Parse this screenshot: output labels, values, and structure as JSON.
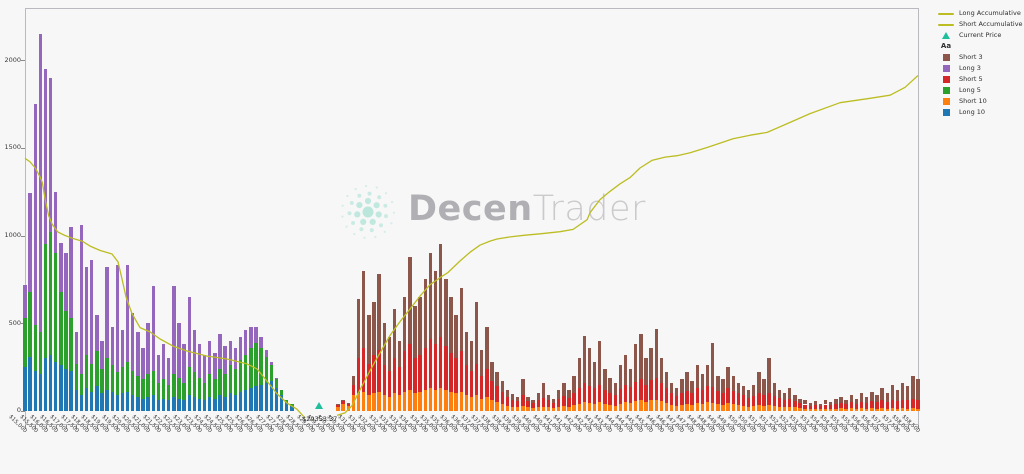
{
  "watermark": {
    "brand_bold": "Decen",
    "brand_light": "Trader"
  },
  "legend": {
    "items": [
      {
        "label": "Long Accumulative",
        "marker": "line",
        "color": "#bcbd22"
      },
      {
        "label": "Short Accumulative",
        "marker": "line",
        "color": "#bcbd22"
      },
      {
        "label": "Current Price",
        "marker": "triangle",
        "color": "#1fbf9c"
      },
      {
        "label": "",
        "marker": "text",
        "text": "Aa",
        "color": "#2e2e2e"
      },
      {
        "label": "Short 3",
        "marker": "square",
        "color": "#8c564b"
      },
      {
        "label": "Long 3",
        "marker": "square",
        "color": "#9467bd"
      },
      {
        "label": "Short 5",
        "marker": "square",
        "color": "#d62728"
      },
      {
        "label": "Long 5",
        "marker": "square",
        "color": "#2ca02c"
      },
      {
        "label": "Short 10",
        "marker": "square",
        "color": "#ff7f0e"
      },
      {
        "label": "Long 10",
        "marker": "square",
        "color": "#1f77b4"
      }
    ]
  },
  "current_price": {
    "label": "$29353.37",
    "value": 29353.37
  },
  "chart_data": {
    "type": "bar",
    "title": "",
    "xlabel": "",
    "ylabel": "",
    "x_axis": {
      "min": 15000,
      "max": 58500,
      "tick_step": 500,
      "tick_prefix": "$"
    },
    "y_axis": {
      "min": -80,
      "max": 2297,
      "ticks": [
        0,
        500,
        1000,
        1500,
        2000
      ]
    },
    "colors": {
      "long10": "#1f77b4",
      "long5": "#2ca02c",
      "long3": "#9467bd",
      "short10": "#ff7f0e",
      "short5": "#d62728",
      "short3": "#8c564b",
      "accumulative_line": "#bcbd22",
      "current_price": "#1fbf9c"
    },
    "long_bars": {
      "start_price": 15000,
      "step": 250,
      "stack_order": [
        "long10",
        "long5",
        "long3"
      ],
      "stacks": [
        [
          250,
          280,
          190
        ],
        [
          310,
          370,
          560
        ],
        [
          230,
          260,
          1260
        ],
        [
          210,
          240,
          1700
        ],
        [
          300,
          650,
          1000
        ],
        [
          320,
          700,
          880
        ],
        [
          280,
          620,
          350
        ],
        [
          260,
          420,
          280
        ],
        [
          240,
          330,
          330
        ],
        [
          230,
          300,
          520
        ],
        [
          120,
          150,
          180
        ],
        [
          90,
          120,
          850
        ],
        [
          130,
          190,
          500
        ],
        [
          110,
          160,
          590
        ],
        [
          140,
          200,
          210
        ],
        [
          100,
          140,
          160
        ],
        [
          120,
          180,
          520
        ],
        [
          110,
          150,
          220
        ],
        [
          90,
          130,
          610
        ],
        [
          100,
          150,
          210
        ],
        [
          110,
          170,
          550
        ],
        [
          90,
          140,
          330
        ],
        [
          80,
          120,
          250
        ],
        [
          70,
          110,
          180
        ],
        [
          80,
          130,
          290
        ],
        [
          90,
          140,
          480
        ],
        [
          60,
          100,
          160
        ],
        [
          70,
          110,
          200
        ],
        [
          60,
          90,
          150
        ],
        [
          80,
          130,
          500
        ],
        [
          70,
          120,
          310
        ],
        [
          60,
          100,
          220
        ],
        [
          90,
          160,
          400
        ],
        [
          80,
          140,
          240
        ],
        [
          70,
          120,
          190
        ],
        [
          60,
          100,
          160
        ],
        [
          80,
          130,
          190
        ],
        [
          70,
          110,
          150
        ],
        [
          90,
          150,
          200
        ],
        [
          80,
          130,
          160
        ],
        [
          100,
          160,
          140
        ],
        [
          90,
          150,
          120
        ],
        [
          110,
          180,
          130
        ],
        [
          120,
          200,
          140
        ],
        [
          130,
          230,
          120
        ],
        [
          140,
          250,
          90
        ],
        [
          150,
          210,
          60
        ],
        [
          160,
          150,
          40
        ],
        [
          170,
          90,
          20
        ],
        [
          130,
          50,
          10
        ],
        [
          90,
          30,
          0
        ],
        [
          50,
          15,
          0
        ],
        [
          30,
          10,
          0
        ]
      ]
    },
    "short_bars": {
      "start_price": 30250,
      "step": 250,
      "stack_order": [
        "short10",
        "short5",
        "short3"
      ],
      "stacks": [
        [
          25,
          10,
          5
        ],
        [
          40,
          15,
          5
        ],
        [
          30,
          10,
          5
        ],
        [
          90,
          60,
          50
        ],
        [
          100,
          200,
          340
        ],
        [
          110,
          250,
          440
        ],
        [
          90,
          180,
          280
        ],
        [
          100,
          220,
          300
        ],
        [
          110,
          240,
          430
        ],
        [
          90,
          170,
          240
        ],
        [
          80,
          150,
          190
        ],
        [
          100,
          200,
          280
        ],
        [
          90,
          160,
          150
        ],
        [
          110,
          230,
          310
        ],
        [
          120,
          260,
          500
        ],
        [
          100,
          200,
          300
        ],
        [
          110,
          210,
          330
        ],
        [
          120,
          240,
          390
        ],
        [
          130,
          280,
          490
        ],
        [
          120,
          260,
          420
        ],
        [
          130,
          290,
          530
        ],
        [
          120,
          250,
          380
        ],
        [
          110,
          220,
          320
        ],
        [
          100,
          200,
          250
        ],
        [
          110,
          230,
          360
        ],
        [
          90,
          170,
          190
        ],
        [
          80,
          150,
          170
        ],
        [
          90,
          180,
          350
        ],
        [
          70,
          130,
          150
        ],
        [
          80,
          160,
          240
        ],
        [
          60,
          110,
          110
        ],
        [
          50,
          90,
          80
        ],
        [
          40,
          70,
          60
        ],
        [
          30,
          50,
          40
        ],
        [
          25,
          40,
          30
        ],
        [
          20,
          35,
          25
        ],
        [
          30,
          60,
          90
        ],
        [
          20,
          35,
          25
        ],
        [
          15,
          30,
          20
        ],
        [
          20,
          40,
          40
        ],
        [
          25,
          50,
          85
        ],
        [
          20,
          40,
          30
        ],
        [
          15,
          30,
          25
        ],
        [
          25,
          45,
          50
        ],
        [
          30,
          55,
          75
        ],
        [
          25,
          50,
          45
        ],
        [
          35,
          70,
          95
        ],
        [
          40,
          90,
          170
        ],
        [
          50,
          110,
          270
        ],
        [
          45,
          100,
          215
        ],
        [
          40,
          90,
          150
        ],
        [
          50,
          100,
          250
        ],
        [
          40,
          80,
          120
        ],
        [
          35,
          70,
          85
        ],
        [
          30,
          60,
          70
        ],
        [
          40,
          85,
          135
        ],
        [
          50,
          100,
          170
        ],
        [
          45,
          90,
          105
        ],
        [
          55,
          110,
          215
        ],
        [
          60,
          120,
          260
        ],
        [
          50,
          100,
          150
        ],
        [
          60,
          115,
          185
        ],
        [
          65,
          125,
          280
        ],
        [
          55,
          105,
          140
        ],
        [
          45,
          85,
          90
        ],
        [
          35,
          65,
          60
        ],
        [
          30,
          55,
          45
        ],
        [
          35,
          65,
          80
        ],
        [
          40,
          75,
          105
        ],
        [
          35,
          70,
          65
        ],
        [
          45,
          85,
          130
        ],
        [
          40,
          80,
          90
        ],
        [
          50,
          95,
          115
        ],
        [
          45,
          90,
          250
        ],
        [
          40,
          75,
          85
        ],
        [
          35,
          70,
          75
        ],
        [
          45,
          85,
          120
        ],
        [
          40,
          75,
          85
        ],
        [
          35,
          65,
          60
        ],
        [
          30,
          60,
          50
        ],
        [
          25,
          50,
          45
        ],
        [
          30,
          55,
          65
        ],
        [
          35,
          65,
          120
        ],
        [
          30,
          60,
          90
        ],
        [
          35,
          70,
          195
        ],
        [
          30,
          55,
          75
        ],
        [
          25,
          50,
          45
        ],
        [
          20,
          40,
          40
        ],
        [
          25,
          45,
          60
        ],
        [
          20,
          35,
          35
        ],
        [
          15,
          30,
          25
        ],
        [
          12,
          25,
          23
        ],
        [
          10,
          20,
          15
        ],
        [
          12,
          22,
          21
        ],
        [
          10,
          20,
          10
        ],
        [
          12,
          25,
          28
        ],
        [
          10,
          22,
          18
        ],
        [
          12,
          28,
          30
        ],
        [
          15,
          30,
          35
        ],
        [
          12,
          28,
          25
        ],
        [
          15,
          35,
          40
        ],
        [
          12,
          30,
          28
        ],
        [
          15,
          38,
          47
        ],
        [
          12,
          35,
          33
        ],
        [
          15,
          40,
          55
        ],
        [
          12,
          38,
          40
        ],
        [
          15,
          45,
          70
        ],
        [
          12,
          40,
          48
        ],
        [
          15,
          48,
          87
        ],
        [
          12,
          45,
          63
        ],
        [
          15,
          50,
          95
        ],
        [
          12,
          48,
          80
        ],
        [
          15,
          55,
          130
        ],
        [
          12,
          50,
          118
        ]
      ]
    },
    "long_accumulative": [
      [
        15000,
        1440
      ],
      [
        15250,
        1420
      ],
      [
        15500,
        1385
      ],
      [
        15750,
        1330
      ],
      [
        15850,
        1300
      ],
      [
        16000,
        1195
      ],
      [
        16150,
        1115
      ],
      [
        16320,
        1065
      ],
      [
        16600,
        1020
      ],
      [
        16950,
        1000
      ],
      [
        17300,
        985
      ],
      [
        17780,
        968
      ],
      [
        18170,
        940
      ],
      [
        18650,
        915
      ],
      [
        19240,
        895
      ],
      [
        19530,
        850
      ],
      [
        19730,
        750
      ],
      [
        19920,
        650
      ],
      [
        20210,
        555
      ],
      [
        20600,
        475
      ],
      [
        21100,
        450
      ],
      [
        21580,
        410
      ],
      [
        22210,
        370
      ],
      [
        22890,
        342
      ],
      [
        23870,
        313
      ],
      [
        24840,
        296
      ],
      [
        25820,
        268
      ],
      [
        26300,
        240
      ],
      [
        26790,
        170
      ],
      [
        27280,
        97
      ],
      [
        27760,
        46
      ],
      [
        28250,
        10
      ],
      [
        28640,
        -40
      ]
    ],
    "short_accumulative": [
      [
        30200,
        -25
      ],
      [
        30600,
        -10
      ],
      [
        30930,
        30
      ],
      [
        31320,
        120
      ],
      [
        31810,
        230
      ],
      [
        32290,
        330
      ],
      [
        32780,
        430
      ],
      [
        33270,
        510
      ],
      [
        33750,
        580
      ],
      [
        34240,
        655
      ],
      [
        34730,
        720
      ],
      [
        35220,
        760
      ],
      [
        35610,
        790
      ],
      [
        36190,
        855
      ],
      [
        36680,
        905
      ],
      [
        37160,
        945
      ],
      [
        37650,
        968
      ],
      [
        37990,
        980
      ],
      [
        38630,
        992
      ],
      [
        39360,
        1002
      ],
      [
        40090,
        1010
      ],
      [
        41060,
        1022
      ],
      [
        41700,
        1035
      ],
      [
        42380,
        1090
      ],
      [
        42520,
        1130
      ],
      [
        43010,
        1205
      ],
      [
        43500,
        1252
      ],
      [
        43990,
        1295
      ],
      [
        44470,
        1330
      ],
      [
        44960,
        1385
      ],
      [
        45540,
        1428
      ],
      [
        46180,
        1447
      ],
      [
        46760,
        1455
      ],
      [
        47400,
        1472
      ],
      [
        48220,
        1502
      ],
      [
        48860,
        1527
      ],
      [
        49490,
        1552
      ],
      [
        50320,
        1572
      ],
      [
        51150,
        1588
      ],
      [
        52270,
        1645
      ],
      [
        53240,
        1695
      ],
      [
        54700,
        1757
      ],
      [
        56160,
        1782
      ],
      [
        57140,
        1800
      ],
      [
        57870,
        1845
      ],
      [
        58500,
        1912
      ]
    ]
  }
}
